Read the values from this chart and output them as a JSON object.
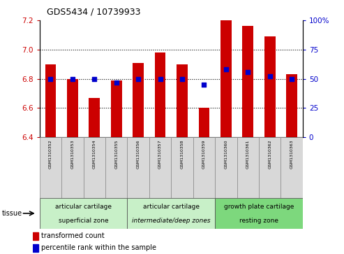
{
  "title": "GDS5434 / 10739933",
  "samples": [
    "GSM1310352",
    "GSM1310353",
    "GSM1310354",
    "GSM1310355",
    "GSM1310356",
    "GSM1310357",
    "GSM1310358",
    "GSM1310359",
    "GSM1310360",
    "GSM1310361",
    "GSM1310362",
    "GSM1310363"
  ],
  "red_values": [
    6.9,
    6.8,
    6.67,
    6.79,
    6.91,
    6.98,
    6.9,
    6.6,
    7.2,
    7.16,
    7.09,
    6.83
  ],
  "blue_percentiles": [
    50,
    50,
    50,
    47,
    50,
    50,
    50,
    45,
    58,
    56,
    52,
    50
  ],
  "ylim_left": [
    6.4,
    7.2
  ],
  "ylim_right": [
    0,
    100
  ],
  "yticks_left": [
    6.4,
    6.6,
    6.8,
    7.0,
    7.2
  ],
  "yticks_right": [
    0,
    25,
    50,
    75,
    100
  ],
  "bar_color": "#cc0000",
  "dot_color": "#0000cc",
  "tissue_groups": [
    {
      "label_line1": "articular cartilage",
      "label_line2": "superficial zone",
      "start": 0,
      "end": 4,
      "color": "#c8f0c8",
      "italic": false
    },
    {
      "label_line1": "articular cartilage",
      "label_line2": "intermediate/deep zones",
      "start": 4,
      "end": 8,
      "color": "#c8f0c8",
      "italic": true
    },
    {
      "label_line1": "growth plate cartilage",
      "label_line2": "resting zone",
      "start": 8,
      "end": 12,
      "color": "#7dd87d",
      "italic": false
    }
  ],
  "tissue_label": "tissue",
  "legend_red": "transformed count",
  "legend_blue": "percentile rank within the sample",
  "left_axis_color": "#cc0000",
  "right_axis_color": "#0000cc",
  "bar_width": 0.5,
  "bar_bottom": 6.4,
  "dotted_lines": [
    6.6,
    6.8,
    7.0
  ]
}
